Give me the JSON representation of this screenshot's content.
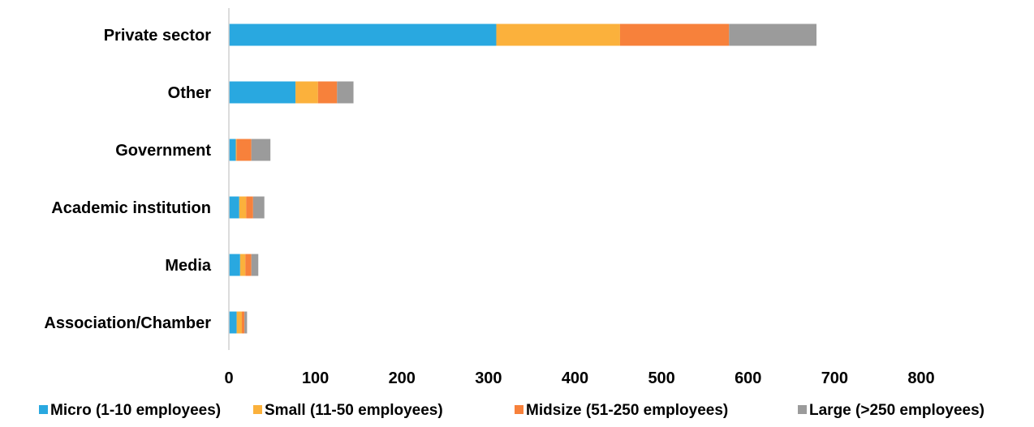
{
  "chart_data": {
    "type": "bar",
    "orientation": "horizontal",
    "stacked": true,
    "title": "",
    "xlabel": "",
    "ylabel": "",
    "xlim": [
      0,
      800
    ],
    "x_ticks": [
      0,
      100,
      200,
      300,
      400,
      500,
      600,
      700,
      800
    ],
    "grid": false,
    "legend_position": "bottom",
    "categories": [
      "Private sector",
      "Other",
      "Government",
      "Academic institution",
      "Media",
      "Association/Chamber"
    ],
    "series": [
      {
        "name": "Micro (1-10 employees)",
        "color": "#29A8E0",
        "values": [
          309,
          77,
          8,
          12,
          13,
          9
        ]
      },
      {
        "name": "Small (11-50 employees)",
        "color": "#FBB13C",
        "values": [
          143,
          26,
          1,
          8,
          6,
          6
        ]
      },
      {
        "name": "Midsize (51-250 employees)",
        "color": "#F7813B",
        "values": [
          126,
          22,
          17,
          8,
          7,
          3
        ]
      },
      {
        "name": "Large (>250 employees)",
        "color": "#9B9B9B",
        "values": [
          101,
          19,
          22,
          13,
          8,
          3
        ]
      }
    ]
  }
}
